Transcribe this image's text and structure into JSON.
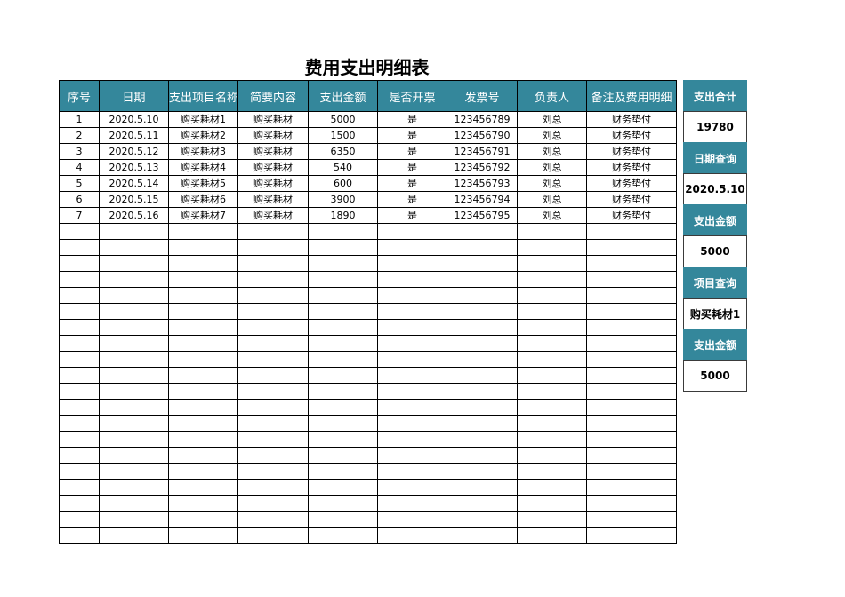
{
  "title": "费用支出明细表",
  "columns": [
    "序号",
    "日期",
    "支出项目名称",
    "简要内容",
    "支出金额",
    "是否开票",
    "发票号",
    "负责人",
    "备注及费用明细"
  ],
  "rows": [
    [
      "1",
      "2020.5.10",
      "购买耗材1",
      "购买耗材",
      "5000",
      "是",
      "123456789",
      "刘总",
      "财务垫付"
    ],
    [
      "2",
      "2020.5.11",
      "购买耗材2",
      "购买耗材",
      "1500",
      "是",
      "123456790",
      "刘总",
      "财务垫付"
    ],
    [
      "3",
      "2020.5.12",
      "购买耗材3",
      "购买耗材",
      "6350",
      "是",
      "123456791",
      "刘总",
      "财务垫付"
    ],
    [
      "4",
      "2020.5.13",
      "购买耗材4",
      "购买耗材",
      "540",
      "是",
      "123456792",
      "刘总",
      "财务垫付"
    ],
    [
      "5",
      "2020.5.14",
      "购买耗材5",
      "购买耗材",
      "600",
      "是",
      "123456793",
      "刘总",
      "财务垫付"
    ],
    [
      "6",
      "2020.5.15",
      "购买耗材6",
      "购买耗材",
      "3900",
      "是",
      "123456794",
      "刘总",
      "财务垫付"
    ],
    [
      "7",
      "2020.5.16",
      "购买耗材7",
      "购买耗材",
      "1890",
      "是",
      "123456795",
      "刘总",
      "财务垫付"
    ]
  ],
  "empty_row_count": 20,
  "side_panel": [
    {
      "label": "支出合计",
      "value": "19780"
    },
    {
      "label": "日期查询",
      "value": "2020.5.10"
    },
    {
      "label": "支出金额",
      "value": "5000"
    },
    {
      "label": "项目查询",
      "value": "购买耗材1"
    },
    {
      "label": "支出金额",
      "value": "5000"
    }
  ],
  "colors": {
    "header_bg": "#34879b",
    "header_text": "#ffffff"
  }
}
